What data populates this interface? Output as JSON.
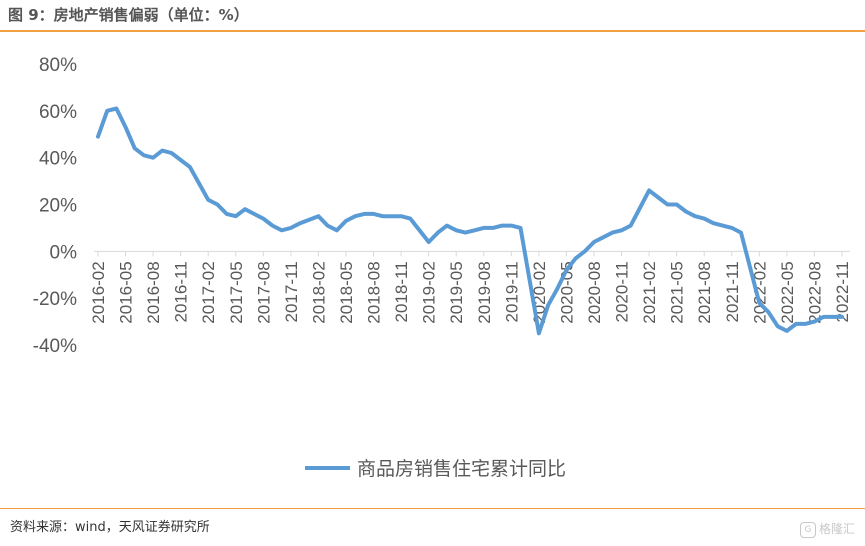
{
  "figure": {
    "title": "图 9：房地产销售偏弱（单位：%）",
    "source": "资料来源：wind，天风证券研究所",
    "watermark": "格隆汇"
  },
  "colors": {
    "accent": "#F0A040",
    "series": "#5B9BD5",
    "axis": "#D9D9D9",
    "text": "#595959"
  },
  "chart_data": {
    "type": "line",
    "title": "",
    "xlabel": "",
    "ylabel": "",
    "ylim": [
      -40,
      80
    ],
    "yticks": [
      -40,
      -20,
      0,
      20,
      40,
      60,
      80
    ],
    "yticklabels": [
      "-40%",
      "-20%",
      "0%",
      "20%",
      "40%",
      "60%",
      "80%"
    ],
    "grid": false,
    "legend_position": "bottom",
    "xticklabels": [
      "2016-02",
      "2016-05",
      "2016-08",
      "2016-11",
      "2017-02",
      "2017-05",
      "2017-08",
      "2017-11",
      "2018-02",
      "2018-05",
      "2018-08",
      "2018-11",
      "2019-02",
      "2019-05",
      "2019-08",
      "2019-11",
      "2020-02",
      "2020-05",
      "2020-08",
      "2020-11",
      "2021-02",
      "2021-05",
      "2021-08",
      "2021-11",
      "2022-02",
      "2022-05",
      "2022-08",
      "2022-11"
    ],
    "x": [
      "2016-02",
      "2016-03",
      "2016-04",
      "2016-05",
      "2016-06",
      "2016-07",
      "2016-08",
      "2016-09",
      "2016-10",
      "2016-11",
      "2016-12",
      "2017-02",
      "2017-03",
      "2017-04",
      "2017-05",
      "2017-06",
      "2017-07",
      "2017-08",
      "2017-09",
      "2017-10",
      "2017-11",
      "2017-12",
      "2018-02",
      "2018-03",
      "2018-04",
      "2018-05",
      "2018-06",
      "2018-07",
      "2018-08",
      "2018-09",
      "2018-10",
      "2018-11",
      "2018-12",
      "2019-02",
      "2019-03",
      "2019-04",
      "2019-05",
      "2019-06",
      "2019-07",
      "2019-08",
      "2019-09",
      "2019-10",
      "2019-11",
      "2019-12",
      "2020-02",
      "2020-03",
      "2020-04",
      "2020-05",
      "2020-06",
      "2020-07",
      "2020-08",
      "2020-09",
      "2020-10",
      "2020-11",
      "2020-12",
      "2021-02",
      "2021-03",
      "2021-04",
      "2021-05",
      "2021-06",
      "2021-07",
      "2021-08",
      "2021-09",
      "2021-10",
      "2021-11",
      "2021-12",
      "2022-02",
      "2022-03",
      "2022-04",
      "2022-05",
      "2022-06",
      "2022-07",
      "2022-08",
      "2022-09",
      "2022-10",
      "2022-11"
    ],
    "series": [
      {
        "name": "商品房销售住宅累计同比",
        "values": [
          49,
          60,
          61,
          53,
          44,
          41,
          40,
          43,
          42,
          39,
          36,
          22,
          20,
          16,
          15,
          18,
          16,
          14,
          11,
          9,
          10,
          12,
          15,
          11,
          9,
          13,
          15,
          16,
          16,
          15,
          15,
          15,
          14,
          4,
          8,
          11,
          9,
          8,
          9,
          10,
          10,
          11,
          11,
          10,
          -35,
          -23,
          -16,
          -8,
          -3,
          0,
          4,
          6,
          8,
          9,
          11,
          26,
          23,
          20,
          20,
          17,
          15,
          14,
          12,
          11,
          10,
          8,
          -22,
          -26,
          -32,
          -34,
          -31,
          -31,
          -30,
          -28,
          -28,
          -28
        ]
      }
    ]
  }
}
